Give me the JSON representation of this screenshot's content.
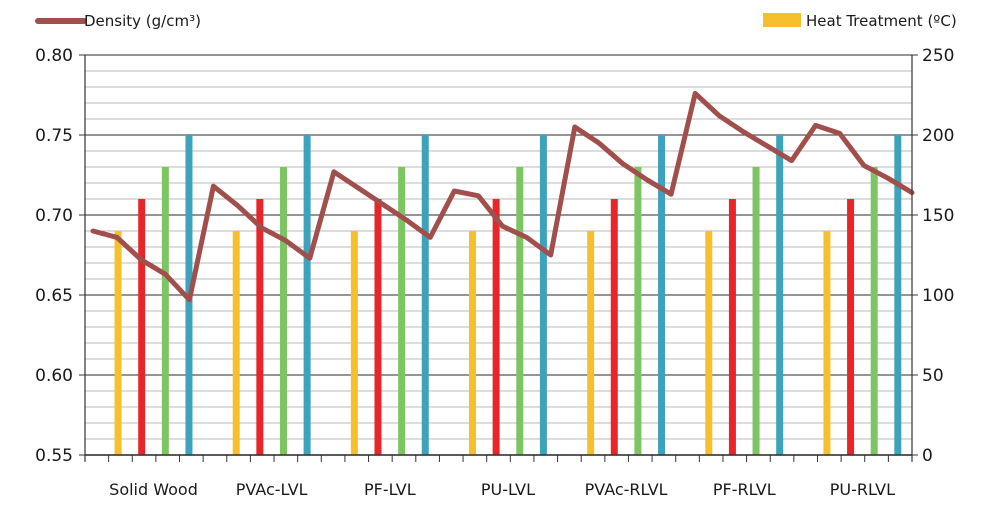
{
  "chart_data": {
    "type": "bar",
    "categories": [
      "Solid Wood",
      "PVAc-LVL",
      "PF-LVL",
      "PU-LVL",
      "PVAc-RLVL",
      "PF-RLVL",
      "PU-RLVL"
    ],
    "legend": {
      "line_label": "Density  (g/cm³)",
      "bar_label": "Heat Treatment (ºC)"
    },
    "y_left": {
      "ticks": [
        "0.55",
        "0.60",
        "0.65",
        "0.70",
        "0.75",
        "0.80"
      ],
      "ylim": [
        0.55,
        0.8
      ]
    },
    "y_right": {
      "ticks": [
        "0",
        "50",
        "100",
        "150",
        "200",
        "250"
      ],
      "ylim": [
        0,
        250
      ]
    },
    "bar_series": [
      {
        "color": "#f6c02c",
        "values": [
          140,
          140,
          140,
          140,
          140,
          140,
          140
        ]
      },
      {
        "color": "#e8262a",
        "values": [
          160,
          160,
          160,
          160,
          160,
          160,
          160
        ]
      },
      {
        "color": "#7dc462",
        "values": [
          180,
          180,
          180,
          180,
          180,
          180,
          180
        ]
      },
      {
        "color": "#3da2bb",
        "values": [
          200,
          200,
          200,
          200,
          200,
          200,
          200
        ]
      }
    ],
    "line_series": {
      "name": "Density  (g/cm³)",
      "color": "#a14f4d",
      "values": [
        0.69,
        0.686,
        0.672,
        0.663,
        0.647,
        0.718,
        0.706,
        0.692,
        0.684,
        0.673,
        0.727,
        0.717,
        0.707,
        0.697,
        0.686,
        0.715,
        0.712,
        0.693,
        0.686,
        0.675,
        0.755,
        0.745,
        0.732,
        0.722,
        0.713,
        0.776,
        0.762,
        0.752,
        0.743,
        0.734,
        0.756,
        0.751,
        0.731,
        0.723,
        0.714
      ]
    },
    "grid": true
  }
}
